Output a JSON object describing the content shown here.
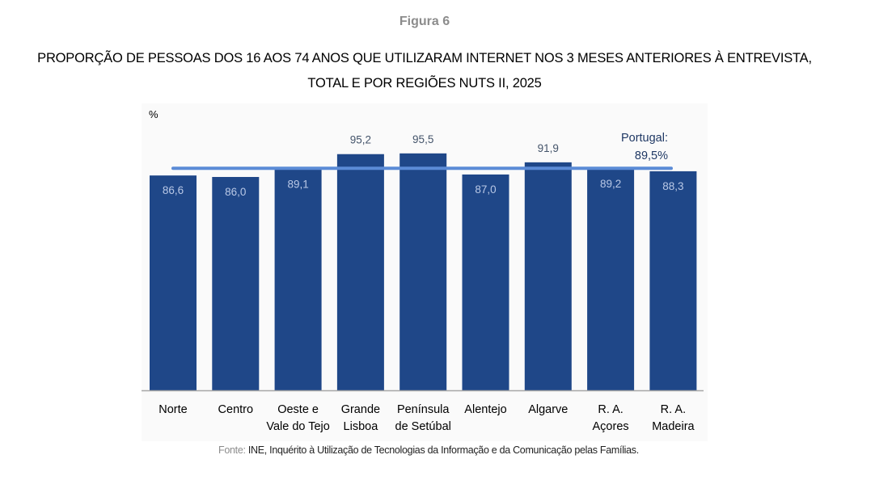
{
  "figure_label": "Figura 6",
  "title_line1": "PROPORÇÃO DE PESSOAS DOS 16 AOS 74 ANOS QUE UTILIZARAM INTERNET NOS 3 MESES ANTERIORES À ENTREVISTA,",
  "title_line2": "TOTAL E POR REGIÕES NUTS II, 2025",
  "source": {
    "label": "Fonte:",
    "text": " INE, Inquérito à Utilização de Tecnologias da Informação e da Comunicação pelas Famílias."
  },
  "colors": {
    "bar": "#1f4788",
    "reference_line": "#5b8bd6",
    "bar_label_inside": "#b9c8e6",
    "bar_label_outside": "#44546a",
    "reference_label": "#1f3864",
    "axis": "#a6a6a6"
  },
  "chart_data": {
    "type": "bar",
    "title": "PROPORÇÃO DE PESSOAS DOS 16 AOS 74 ANOS QUE UTILIZARAM INTERNET NOS 3 MESES ANTERIORES À ENTREVISTA, TOTAL E POR REGIÕES NUTS II, 2025",
    "ylabel": "%",
    "xlabel": "",
    "ylim": [
      0,
      102
    ],
    "grid": false,
    "categories": [
      [
        "Norte"
      ],
      [
        "Centro"
      ],
      [
        "Oeste e",
        "Vale do Tejo"
      ],
      [
        "Grande",
        "Lisboa"
      ],
      [
        "Península",
        "de Setúbal"
      ],
      [
        "Alentejo"
      ],
      [
        "Algarve"
      ],
      [
        "R. A.",
        "Açores"
      ],
      [
        "R. A.",
        "Madeira"
      ]
    ],
    "values": [
      86.6,
      86.0,
      89.1,
      95.2,
      95.5,
      87.0,
      91.9,
      89.2,
      88.3
    ],
    "value_labels": [
      "86,6",
      "86,0",
      "89,1",
      "95,2",
      "95,5",
      "87,0",
      "91,9",
      "89,2",
      "88,3"
    ],
    "reference_line": {
      "value": 89.5,
      "label_line1": "Portugal:",
      "label_line2": "89,5%"
    }
  }
}
